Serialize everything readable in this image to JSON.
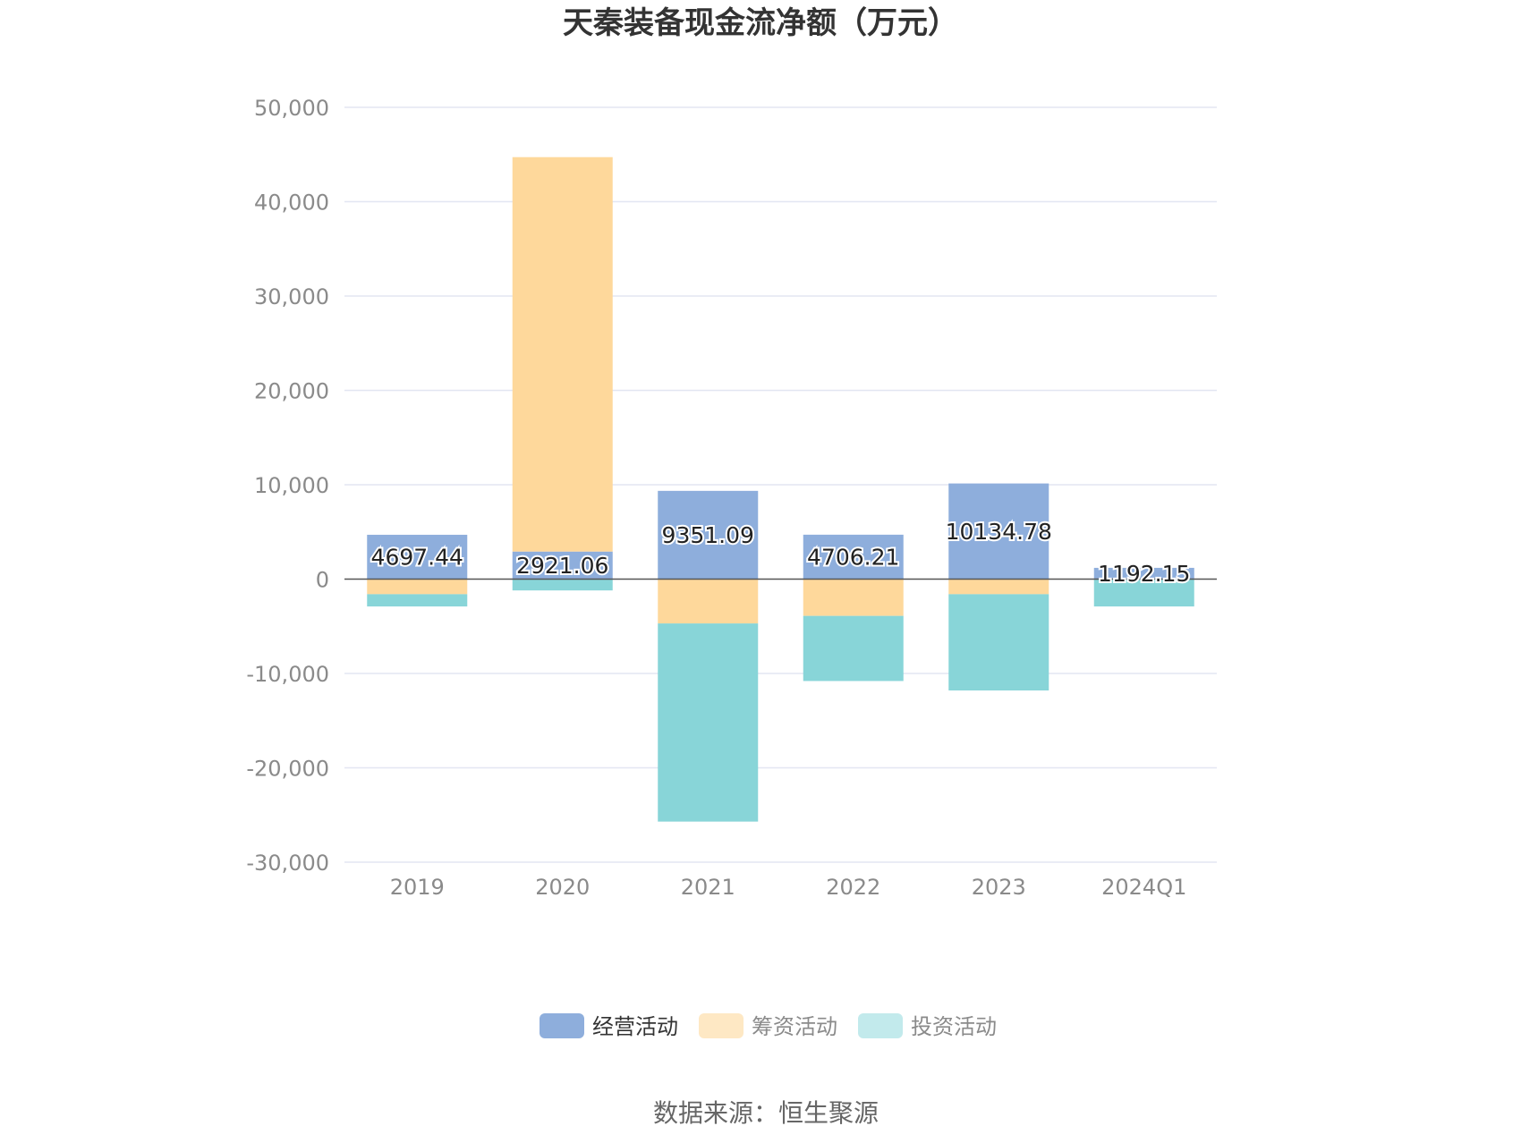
{
  "chart_data": {
    "type": "bar",
    "stacked": true,
    "title": "天秦装备现金流净额（万元）",
    "categories": [
      "2019",
      "2020",
      "2021",
      "2022",
      "2023",
      "2024Q1"
    ],
    "series": [
      {
        "name": "经营活动",
        "color": "#8eaedc",
        "values": [
          4697.44,
          2921.06,
          9351.09,
          4706.21,
          10134.78,
          1192.15
        ]
      },
      {
        "name": "筹资活动",
        "color": "#fed89b",
        "values": [
          -1600,
          41800,
          -4700,
          -3900,
          -1600,
          0
        ]
      },
      {
        "name": "投资活动",
        "color": "#88d5d8",
        "values": [
          -1300,
          -1200,
          -21000,
          -6900,
          -10200,
          -2900
        ]
      }
    ],
    "data_labels": [
      "4697.44",
      "2921.06",
      "9351.09",
      "4706.21",
      "10134.78",
      "1192.15"
    ],
    "ylim": [
      -30000,
      50000
    ],
    "yticks": [
      50000,
      40000,
      30000,
      20000,
      10000,
      0,
      -10000,
      -20000,
      -30000
    ],
    "ytick_labels": [
      "50,000",
      "40,000",
      "30,000",
      "20,000",
      "10,000",
      "0",
      "-10,000",
      "-20,000",
      "-30,000"
    ],
    "legend_colors": [
      "#8eaedc",
      "#fee8c4",
      "#c2eaec"
    ],
    "grid": true,
    "legend_position": "bottom"
  },
  "footer": {
    "source": "数据来源：恒生聚源"
  }
}
